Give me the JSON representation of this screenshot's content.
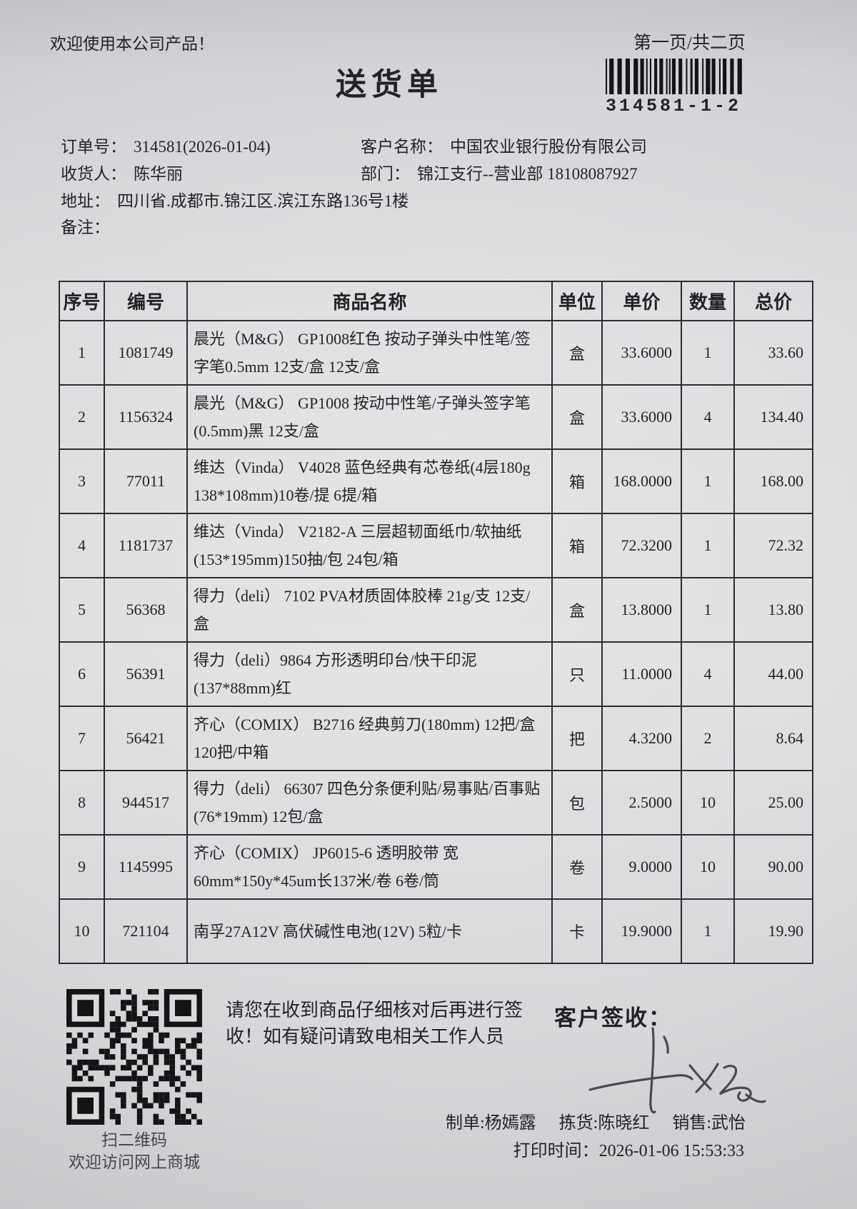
{
  "colors": {
    "ink": "#232327",
    "paper": "#dadadc",
    "barcode": "#141417"
  },
  "page": {
    "welcome": "欢迎使用本公司产品！",
    "page_indicator": "第一页/共二页",
    "title": "送货单",
    "barcode_number": "314581-1-2"
  },
  "order_info": {
    "order_no_label": "订单号：",
    "order_no": "314581(2026-01-04)",
    "customer_label": "客户名称：",
    "customer": "中国农业银行股份有限公司",
    "receiver_label": "收货人：",
    "receiver": "陈华丽",
    "department_label": "部门：",
    "department": "锦江支行--营业部 18108087927",
    "address_label": "地址：",
    "address": "四川省.成都市.锦江区.滨江东路136号1楼",
    "remark_label": "备注：",
    "remark": ""
  },
  "table": {
    "headers": [
      "序号",
      "编号",
      "商品名称",
      "单位",
      "单价",
      "数量",
      "总价"
    ],
    "rows": [
      {
        "seq": "1",
        "code": "1081749",
        "name": "晨光（M&G） GP1008红色 按动子弹头中性笔/签字笔0.5mm 12支/盒 12支/盒",
        "unit": "盒",
        "price": "33.6000",
        "qty": "1",
        "total": "33.60"
      },
      {
        "seq": "2",
        "code": "1156324",
        "name": "晨光（M&G） GP1008 按动中性笔/子弹头签字笔(0.5mm)黑 12支/盒",
        "unit": "盒",
        "price": "33.6000",
        "qty": "4",
        "total": "134.40"
      },
      {
        "seq": "3",
        "code": "77011",
        "name": "维达（Vinda） V4028 蓝色经典有芯卷纸(4层180g 138*108mm)10卷/提 6提/箱",
        "unit": "箱",
        "price": "168.0000",
        "qty": "1",
        "total": "168.00"
      },
      {
        "seq": "4",
        "code": "1181737",
        "name": "维达（Vinda） V2182-A 三层超韧面纸巾/软抽纸(153*195mm)150抽/包 24包/箱",
        "unit": "箱",
        "price": "72.3200",
        "qty": "1",
        "total": "72.32"
      },
      {
        "seq": "5",
        "code": "56368",
        "name": "得力（deli） 7102 PVA材质固体胶棒 21g/支 12支/盒",
        "unit": "盒",
        "price": "13.8000",
        "qty": "1",
        "total": "13.80"
      },
      {
        "seq": "6",
        "code": "56391",
        "name": "得力（deli）9864 方形透明印台/快干印泥(137*88mm)红",
        "unit": "只",
        "price": "11.0000",
        "qty": "4",
        "total": "44.00"
      },
      {
        "seq": "7",
        "code": "56421",
        "name": "齐心（COMIX） B2716 经典剪刀(180mm) 12把/盒 120把/中箱",
        "unit": "把",
        "price": "4.3200",
        "qty": "2",
        "total": "8.64"
      },
      {
        "seq": "8",
        "code": "944517",
        "name": "得力（deli） 66307 四色分条便利贴/易事贴/百事贴(76*19mm) 12包/盒",
        "unit": "包",
        "price": "2.5000",
        "qty": "10",
        "total": "25.00"
      },
      {
        "seq": "9",
        "code": "1145995",
        "name": "齐心（COMIX） JP6015-6 透明胶带 宽60mm*150y*45um长137米/卷 6卷/筒",
        "unit": "卷",
        "price": "9.0000",
        "qty": "10",
        "total": "90.00"
      },
      {
        "seq": "10",
        "code": "721104",
        "name": "南孚27A12V 高伏碱性电池(12V) 5粒/卡",
        "unit": "卡",
        "price": "19.9000",
        "qty": "1",
        "total": "19.90"
      }
    ]
  },
  "footer": {
    "qr_caption_line1": "扫二维码",
    "qr_caption_line2": "欢迎访问网上商城",
    "notice_line1": "请您在收到商品仔细核对后再进行签",
    "notice_line2": "收！如有疑问请致电相关工作人员",
    "sign_label": "客户签收：",
    "maker_label": "制单:",
    "maker": "杨嫣露",
    "picker_label": "拣货:",
    "picker": "陈晓红",
    "seller_label": "销售:",
    "seller": "武怡",
    "print_time_label": "打印时间：",
    "print_time": "2026-01-06 15:53:33"
  }
}
